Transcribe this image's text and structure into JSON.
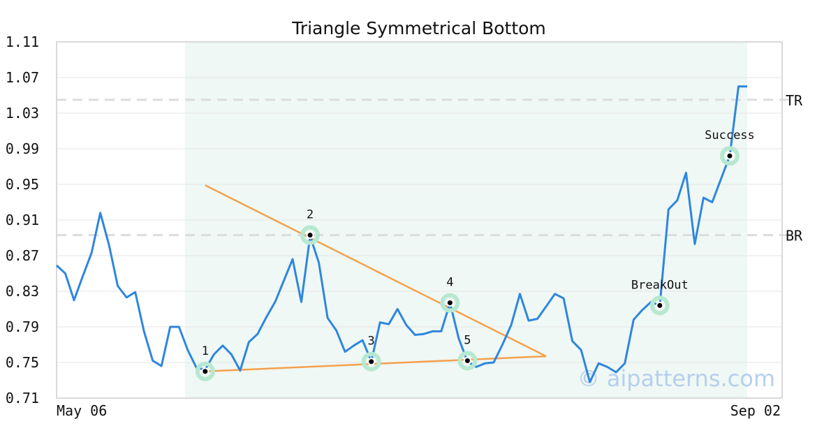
{
  "chart_data": {
    "type": "line",
    "title": "Triangle Symmetrical Bottom",
    "xlabel": "",
    "ylabel": "",
    "x_tick_labels": [
      "May 06",
      "Sep 02"
    ],
    "y_ticks": [
      "1.11",
      "1.07",
      "1.03",
      "0.99",
      "0.95",
      "0.91",
      "0.87",
      "0.83",
      "0.79",
      "0.75",
      "0.71"
    ],
    "ylim": [
      0.71,
      1.11
    ],
    "grid": true,
    "pattern_region": {
      "start_index": 15,
      "end_index": 79
    },
    "series": [
      {
        "color": "#2e86de",
        "values": [
          0.859,
          0.85,
          0.82,
          0.847,
          0.873,
          0.918,
          0.882,
          0.836,
          0.823,
          0.829,
          0.785,
          0.752,
          0.746,
          0.79,
          0.79,
          0.764,
          0.744,
          0.742,
          0.759,
          0.769,
          0.759,
          0.741,
          0.773,
          0.782,
          0.801,
          0.818,
          0.842,
          0.866,
          0.818,
          0.892,
          0.862,
          0.8,
          0.786,
          0.762,
          0.769,
          0.775,
          0.751,
          0.795,
          0.793,
          0.81,
          0.792,
          0.781,
          0.782,
          0.785,
          0.785,
          0.817,
          0.777,
          0.751,
          0.745,
          0.749,
          0.75,
          0.77,
          0.792,
          0.827,
          0.797,
          0.799,
          0.813,
          0.827,
          0.822,
          0.774,
          0.764,
          0.728,
          0.749,
          0.745,
          0.739,
          0.749,
          0.798,
          0.809,
          0.818,
          0.814,
          0.922,
          0.932,
          0.963,
          0.883,
          0.935,
          0.93,
          0.956,
          0.982,
          1.06,
          1.06
        ]
      }
    ],
    "trend_lines": [
      {
        "name": "upper",
        "color": "#f5a04d",
        "from": {
          "index": 17,
          "y": 0.949
        },
        "to": {
          "index": 56,
          "y": 0.757
        }
      },
      {
        "name": "lower",
        "color": "#f5a04d",
        "from": {
          "index": 17,
          "y": 0.74
        },
        "to": {
          "index": 56,
          "y": 0.757
        }
      }
    ],
    "levels": [
      {
        "label": "TR",
        "value": 1.045
      },
      {
        "label": "BR",
        "value": 0.893
      }
    ],
    "pattern_points": [
      {
        "label": "1",
        "index": 17,
        "value": 0.74
      },
      {
        "label": "2",
        "index": 29,
        "value": 0.893
      },
      {
        "label": "3",
        "index": 36,
        "value": 0.751
      },
      {
        "label": "4",
        "index": 45,
        "value": 0.817
      },
      {
        "label": "5",
        "index": 47,
        "value": 0.752
      },
      {
        "label": "BreakOut",
        "index": 69,
        "value": 0.814
      },
      {
        "label": "Success",
        "index": 77,
        "value": 0.982
      }
    ],
    "watermark": "© aipatterns.com"
  }
}
